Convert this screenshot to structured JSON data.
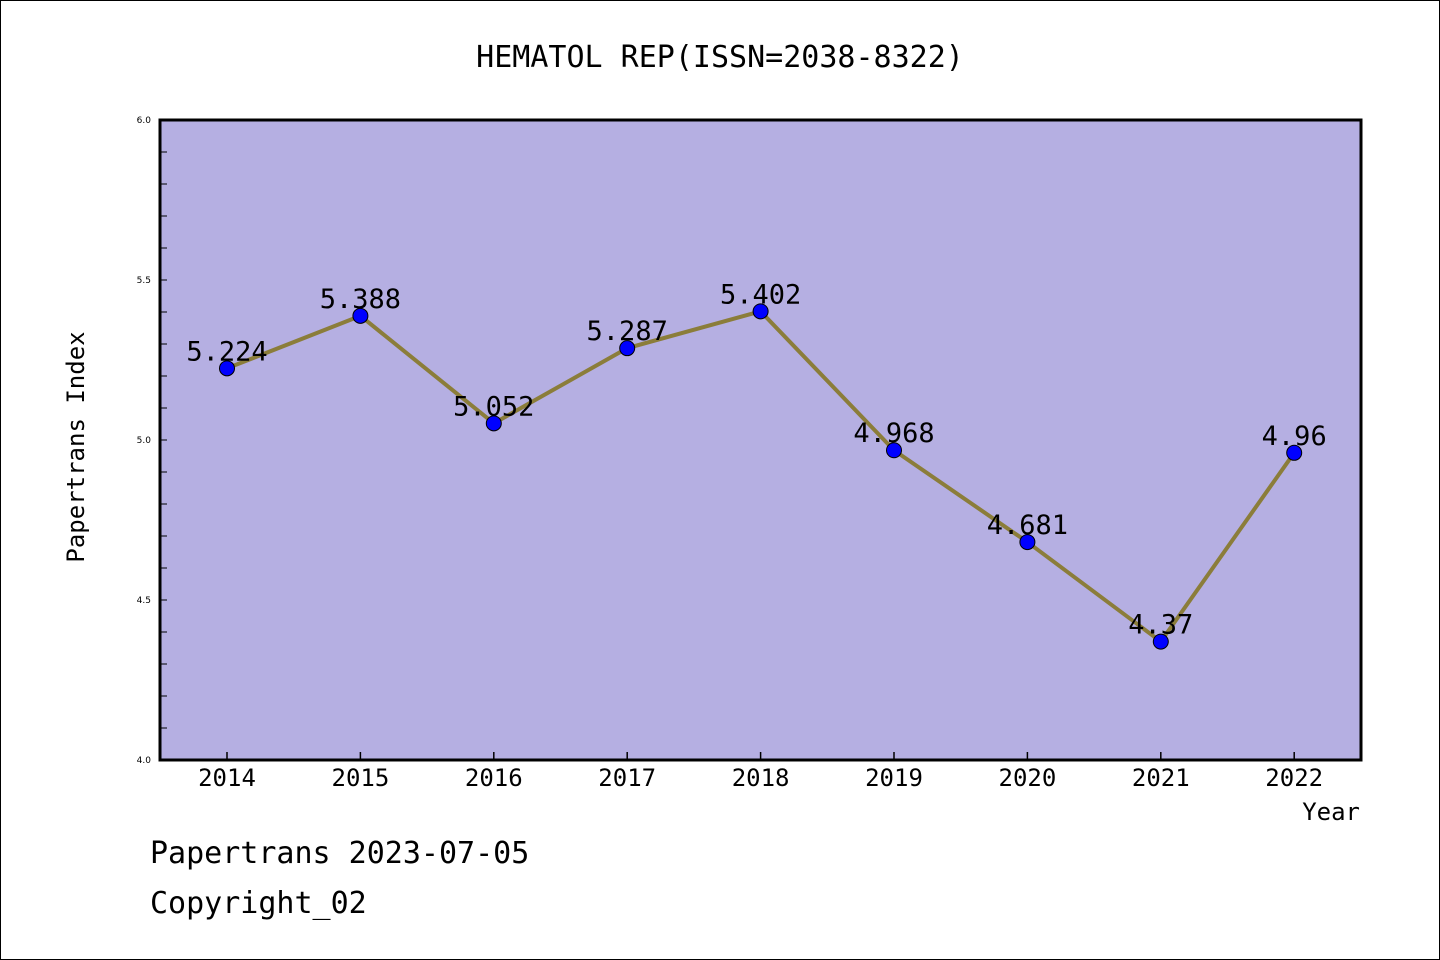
{
  "chart_data": {
    "type": "line",
    "title": "HEMATOL REP(ISSN=2038-8322)",
    "xlabel": "Year",
    "ylabel": "Papertrans Index",
    "categories": [
      "2014",
      "2015",
      "2016",
      "2017",
      "2018",
      "2019",
      "2020",
      "2021",
      "2022"
    ],
    "series": [
      {
        "values": [
          5.224,
          5.388,
          5.052,
          5.287,
          5.402,
          4.968,
          4.681,
          4.37,
          4.96
        ],
        "labels": [
          "5.224",
          "5.388",
          "5.052",
          "5.287",
          "5.402",
          "4.968",
          "4.681",
          "4.37",
          "4.96"
        ]
      }
    ],
    "ylim": [
      4.0,
      6.0
    ],
    "yticks": [
      "4.0",
      "4.5",
      "5.0",
      "5.5",
      "6.0"
    ],
    "grid": false,
    "legend": "none",
    "colors": {
      "plot_background": "#b5afe2",
      "line": "#8b7d3a",
      "marker": "#0000ff",
      "axes": "#000000"
    }
  },
  "footer": {
    "date_text": "Papertrans 2023-07-05",
    "copyright_text": "Copyright_02"
  }
}
